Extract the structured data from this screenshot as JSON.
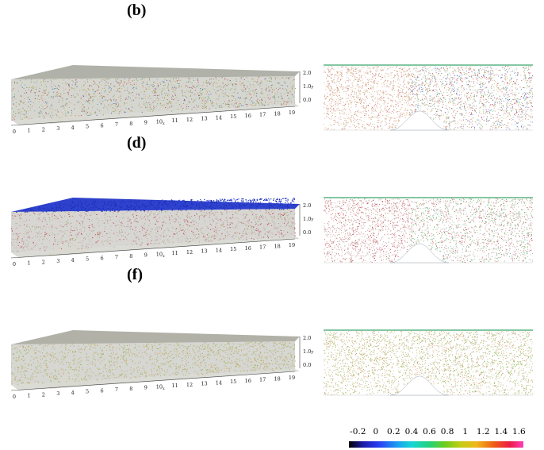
{
  "panels": [
    {
      "id": "b",
      "label": "(b)",
      "wall_color": "#a4a49a",
      "top_color": "#a7a89e",
      "palette": [
        "#b9b66a",
        "#c5b079",
        "#d07f66",
        "#c8464e",
        "#8bb062",
        "#6ea58f",
        "#4a6cb0",
        "#9a9c3f"
      ],
      "side_palette": [
        "#c9ac71",
        "#cfa98b",
        "#d0706d",
        "#c43b4a",
        "#9bb059",
        "#6f8dbc",
        "#3c63c4",
        "#6ab37c"
      ],
      "top_sheet": false
    },
    {
      "id": "d",
      "label": "(d)",
      "wall_color": "#a6a59c",
      "top_color": "#2337c8",
      "palette": [
        "#c4a7a0",
        "#bb8f93",
        "#c23e52",
        "#c9b9ad",
        "#a1b46d"
      ],
      "side_palette": [
        "#b9a3a0",
        "#c89b8f",
        "#c24150",
        "#cfa7b2",
        "#80b05a",
        "#4fb07a"
      ],
      "top_sheet": true
    },
    {
      "id": "f",
      "label": "(f)",
      "wall_color": "#a5a59c",
      "top_color": "#a8a89e",
      "palette": [
        "#bcae63",
        "#c3a66e",
        "#a6b056",
        "#8cbc4a",
        "#d0a874",
        "#b6b150"
      ],
      "side_palette": [
        "#c5a36c",
        "#bba86c",
        "#9ab954",
        "#6fbf49",
        "#c79f80",
        "#d4b085"
      ],
      "top_sheet": false
    }
  ],
  "axis": {
    "x_ticks": [
      "0",
      "1",
      "2",
      "3",
      "4",
      "5",
      "6",
      "7",
      "8",
      "9",
      "10",
      "11",
      "12",
      "13",
      "14",
      "15",
      "16",
      "17",
      "18",
      "19"
    ],
    "x_name": "x",
    "y_ticks": [
      "2.0",
      "1.0",
      "0.0"
    ],
    "y_name": "y"
  },
  "colorbar": {
    "ticks": [
      "-0.2",
      "0",
      "0.2",
      "0.4",
      "0.6",
      "0.8",
      "1",
      "1.2",
      "1.4",
      "1.6"
    ],
    "range": [
      -0.3,
      1.65
    ]
  }
}
